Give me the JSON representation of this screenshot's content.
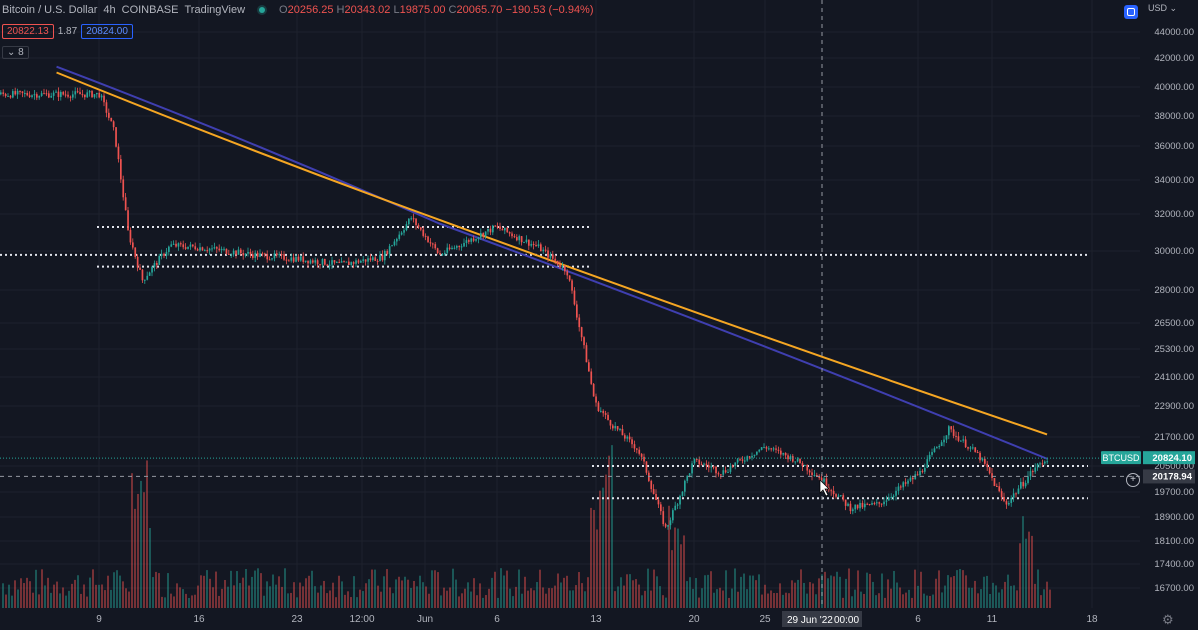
{
  "header": {
    "symbol": "Bitcoin / U.S. Dollar",
    "interval": "4h",
    "exchange": "COINBASE",
    "platform": "TradingView",
    "open_label": "O",
    "open": "20256.25",
    "high_label": "H",
    "high": "20343.02",
    "low_label": "L",
    "low": "19875.00",
    "close_label": "C",
    "close": "20065.70",
    "change": "−190.53 (−0.94%)"
  },
  "quote": {
    "sell": "20822.13",
    "spread": "1.87",
    "buy": "20824.00"
  },
  "indicators_toggle": "8",
  "currency": "USD",
  "settings_icon": "gear-icon",
  "colors": {
    "background": "#131722",
    "up": "#26a69a",
    "down": "#ef5350",
    "ma_short": "#3f3fb0",
    "ma_long": "#f5a623",
    "grid": "#1e222d",
    "level": "#e0e3eb",
    "price_tag": "#26a69a"
  },
  "chart_data": {
    "type": "candlestick",
    "scale": "nonlinear (log-like)",
    "grid": true,
    "y_ticks": [
      "44000.00",
      "42000.00",
      "40000.00",
      "38000.00",
      "36000.00",
      "34000.00",
      "32000.00",
      "30000.00",
      "28000.00",
      "26500.00",
      "25300.00",
      "24100.00",
      "22900.00",
      "21700.00",
      "20500.00",
      "19700.00",
      "18900.00",
      "18100.00",
      "17400.00",
      "16700.00"
    ],
    "x_ticks": [
      "9",
      "16",
      "23",
      "12:00",
      "Jun",
      "6",
      "13",
      "20",
      "25",
      "6",
      "11",
      "18"
    ],
    "crosshair": {
      "x_label": "29 Jun '22",
      "x_time": "00:00",
      "y_value": "20178.94"
    },
    "price_tag": {
      "label": "BTCUSD",
      "value": "20824.10"
    },
    "price_series_path": [
      [
        "9 May",
        39500
      ],
      [
        "10 May",
        37000
      ],
      [
        "11 May",
        31000
      ],
      [
        "12 May",
        28500
      ],
      [
        "14 May",
        30300
      ],
      [
        "16 May",
        30200
      ],
      [
        "20 May",
        29800
      ],
      [
        "23 May",
        29600
      ],
      [
        "26 May",
        29300
      ],
      [
        "29 May",
        29700
      ],
      [
        "31 May",
        31800
      ],
      [
        "2 Jun",
        29800
      ],
      [
        "6 Jun",
        31300
      ],
      [
        "9 Jun",
        30200
      ],
      [
        "11 Jun",
        29000
      ],
      [
        "13 Jun",
        23000
      ],
      [
        "14 Jun",
        22300
      ],
      [
        "16 Jun",
        21200
      ],
      [
        "18 Jun",
        18500
      ],
      [
        "20 Jun",
        20700
      ],
      [
        "22 Jun",
        20300
      ],
      [
        "25 Jun",
        21300
      ],
      [
        "27 Jun",
        20800
      ],
      [
        "29 Jun",
        20100
      ],
      [
        "1 Jul",
        19200
      ],
      [
        "3 Jul",
        19300
      ],
      [
        "6 Jul",
        20300
      ],
      [
        "8 Jul",
        22000
      ],
      [
        "10 Jul",
        21000
      ],
      [
        "12 Jul",
        19300
      ],
      [
        "14 Jul",
        20400
      ],
      [
        "15 Jul",
        20824
      ]
    ],
    "moving_averages": [
      {
        "color": "#3f3fb0",
        "values": [
          [
            "6 May",
            41400
          ],
          [
            "2 Jun",
            31500
          ],
          [
            "15 Jul",
            20800
          ]
        ]
      },
      {
        "color": "#f5a623",
        "values": [
          [
            "6 May",
            41000
          ],
          [
            "2 Jun",
            31700
          ],
          [
            "15 Jul",
            21800
          ]
        ]
      }
    ],
    "horizontal_levels": [
      31300,
      29800,
      29200,
      20500,
      19500
    ],
    "volume": "histogram along bottom, peaks near 12 May, 13 Jun, 18 Jun, 14 Jul"
  }
}
